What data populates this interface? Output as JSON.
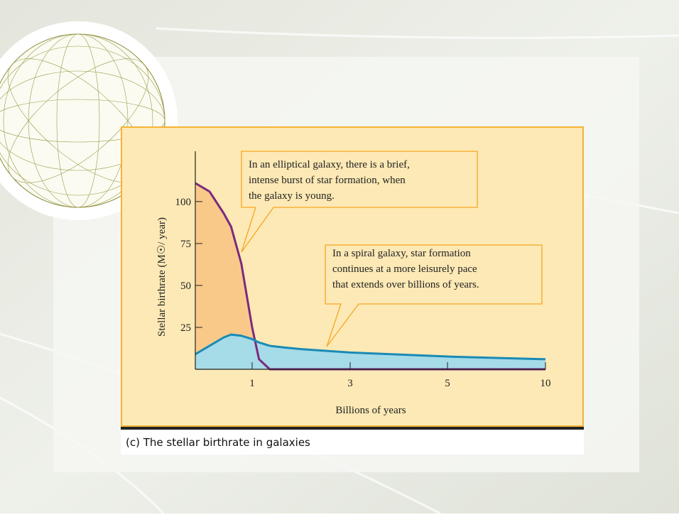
{
  "chart_data": {
    "type": "area",
    "caption": "(c) The stellar birthrate in galaxies",
    "x_label": "Billions of years",
    "y_label": "Stellar birthrate (M☉/ year)",
    "x": [
      0,
      0.25,
      0.5,
      0.63,
      0.81,
      1,
      1.14,
      1.36,
      1.65,
      2,
      3,
      5,
      10
    ],
    "series": [
      {
        "color": "#7b2a7e",
        "fill": "#f9c98a",
        "values": [
          111,
          106,
          93,
          85,
          63,
          25,
          6,
          0,
          0,
          0,
          0,
          0,
          0
        ]
      },
      {
        "color": "#1a8ab5",
        "fill": "#a6dbe8",
        "values": [
          9,
          14,
          19,
          20.7,
          20,
          18,
          16,
          14,
          13,
          12,
          10,
          7.6,
          6
        ]
      }
    ],
    "xlim": [
      0,
      10
    ],
    "xticks": [
      1,
      3,
      5,
      10
    ],
    "ylim": [
      0,
      130
    ],
    "yticks": [
      25,
      50,
      75,
      100
    ],
    "annotations": [
      {
        "lines": [
          "In an elliptical galaxy, there is a brief,",
          "intense burst of star formation, when",
          "the galaxy is young."
        ]
      },
      {
        "lines": [
          "In a spiral galaxy, star formation",
          "continues at a more leisurely pace",
          "that extends over billions of years."
        ]
      }
    ]
  }
}
